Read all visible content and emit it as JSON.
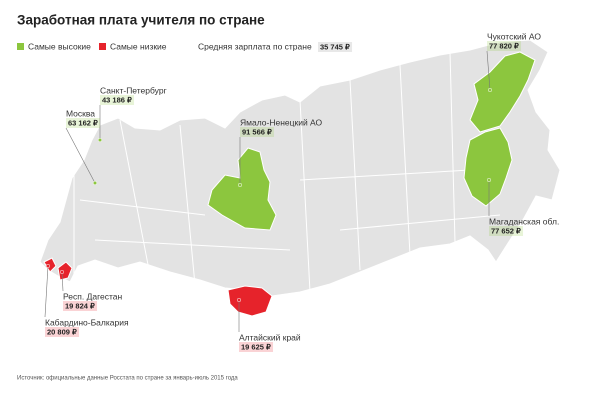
{
  "header": {
    "title": "Заработная плата учителя по стране"
  },
  "legend": {
    "items": [
      {
        "label": "Самые высокие",
        "color": "#8cc63e"
      },
      {
        "label": "Самые низкие",
        "color": "#e6232b"
      }
    ],
    "average": {
      "label": "Средняя зарплата по стране",
      "value": "35 745 ₽"
    }
  },
  "regions": [
    {
      "name": "Чукотский АО",
      "value": "77 820 ₽",
      "color": "#8cc63e"
    },
    {
      "name": "Санкт-Петербург",
      "value": "43 186 ₽",
      "color": "#8cc63e"
    },
    {
      "name": "Москва",
      "value": "63 162 ₽",
      "color": "#8cc63e"
    },
    {
      "name": "Ямало-Ненецкий АО",
      "value": "91 566 ₽",
      "color": "#8cc63e"
    },
    {
      "name": "Магаданская обл.",
      "value": "77 652 ₽",
      "color": "#8cc63e"
    },
    {
      "name": "Респ. Дагестан",
      "value": "19 824 ₽",
      "color": "#e6232b"
    },
    {
      "name": "Кабардино-Балкария",
      "value": "20 809 ₽",
      "color": "#e6232b"
    },
    {
      "name": "Алтайский край",
      "value": "19 625 ₽",
      "color": "#e6232b"
    }
  ],
  "source": "Источник: официальные данные Росстата по стране за январь-июль 2015 года"
}
